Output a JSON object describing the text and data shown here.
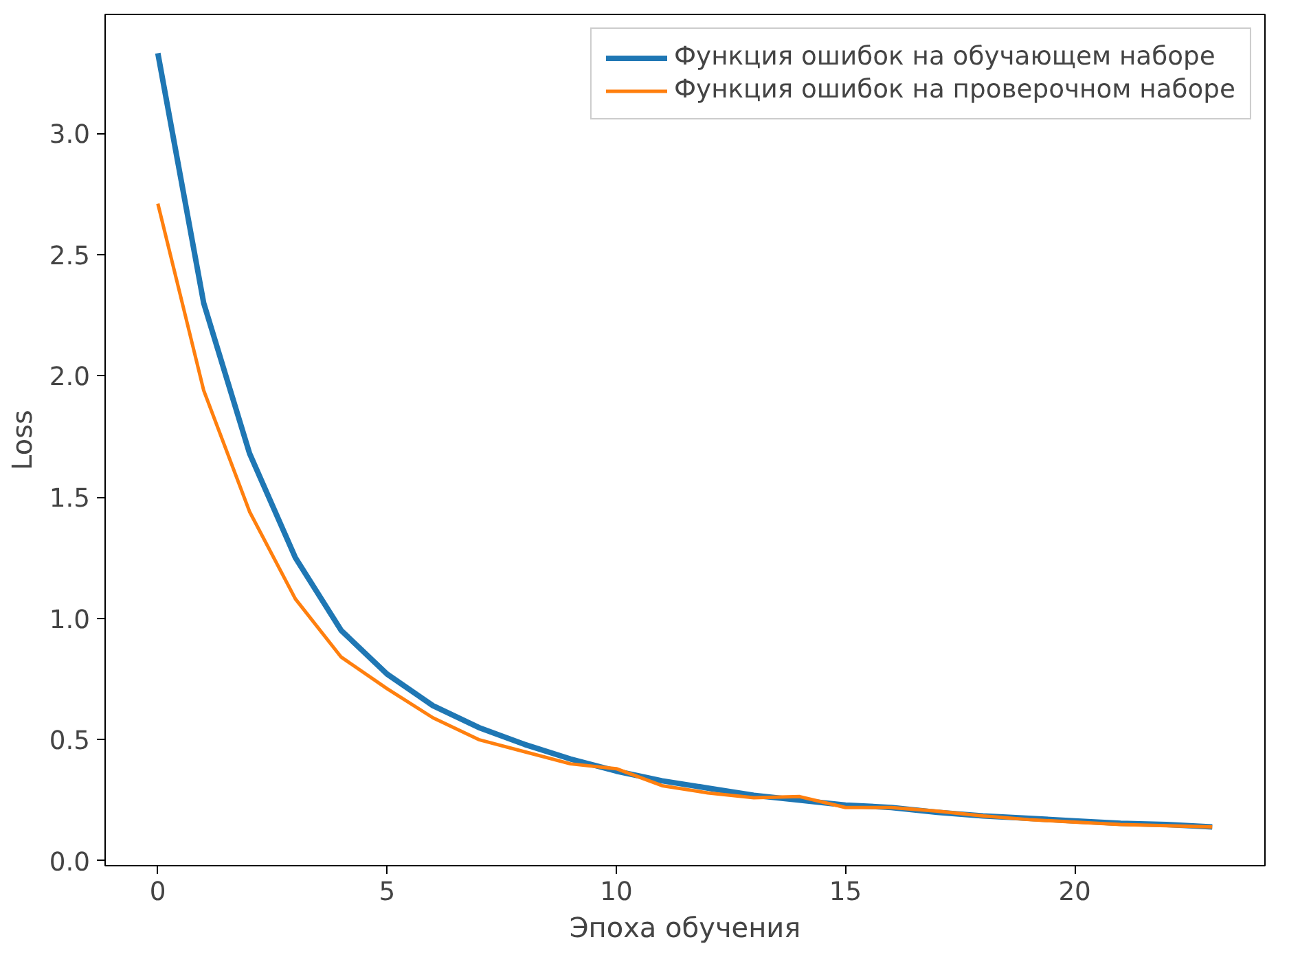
{
  "chart_data": {
    "type": "line",
    "xlabel": "Эпоха обучения",
    "ylabel": "Loss",
    "x": [
      0,
      1,
      2,
      3,
      4,
      5,
      6,
      7,
      8,
      9,
      10,
      11,
      12,
      13,
      14,
      15,
      16,
      17,
      18,
      19,
      20,
      21,
      22,
      23
    ],
    "series": [
      {
        "name": "Функция ошибок на обучающем наборе",
        "color": "#1f77b4",
        "values": [
          3.33,
          2.3,
          1.68,
          1.25,
          0.95,
          0.77,
          0.64,
          0.55,
          0.48,
          0.42,
          0.37,
          0.33,
          0.3,
          0.27,
          0.25,
          0.23,
          0.22,
          0.2,
          0.185,
          0.175,
          0.165,
          0.155,
          0.15,
          0.14
        ]
      },
      {
        "name": "Функция ошибок на проверочном наборе",
        "color": "#ff7f0e",
        "values": [
          2.71,
          1.94,
          1.44,
          1.08,
          0.84,
          0.71,
          0.59,
          0.5,
          0.45,
          0.4,
          0.38,
          0.31,
          0.28,
          0.26,
          0.265,
          0.22,
          0.22,
          0.205,
          0.185,
          0.17,
          0.16,
          0.15,
          0.145,
          0.14
        ]
      }
    ],
    "xlim": [
      -1.15,
      24.15
    ],
    "ylim": [
      -0.02,
      3.49
    ],
    "xticks": [
      0,
      5,
      10,
      15,
      20
    ],
    "yticks": [
      {
        "value": 0,
        "label": "0.0"
      },
      {
        "value": 0.5,
        "label": "0.5"
      },
      {
        "value": 1,
        "label": "1.0"
      },
      {
        "value": 1.5,
        "label": "1.5"
      },
      {
        "value": 2,
        "label": "2.0"
      },
      {
        "value": 2.5,
        "label": "2.5"
      },
      {
        "value": 3,
        "label": "3.0"
      }
    ],
    "grid": false,
    "legend": "top right",
    "line_style": "solid",
    "marker": "none"
  }
}
